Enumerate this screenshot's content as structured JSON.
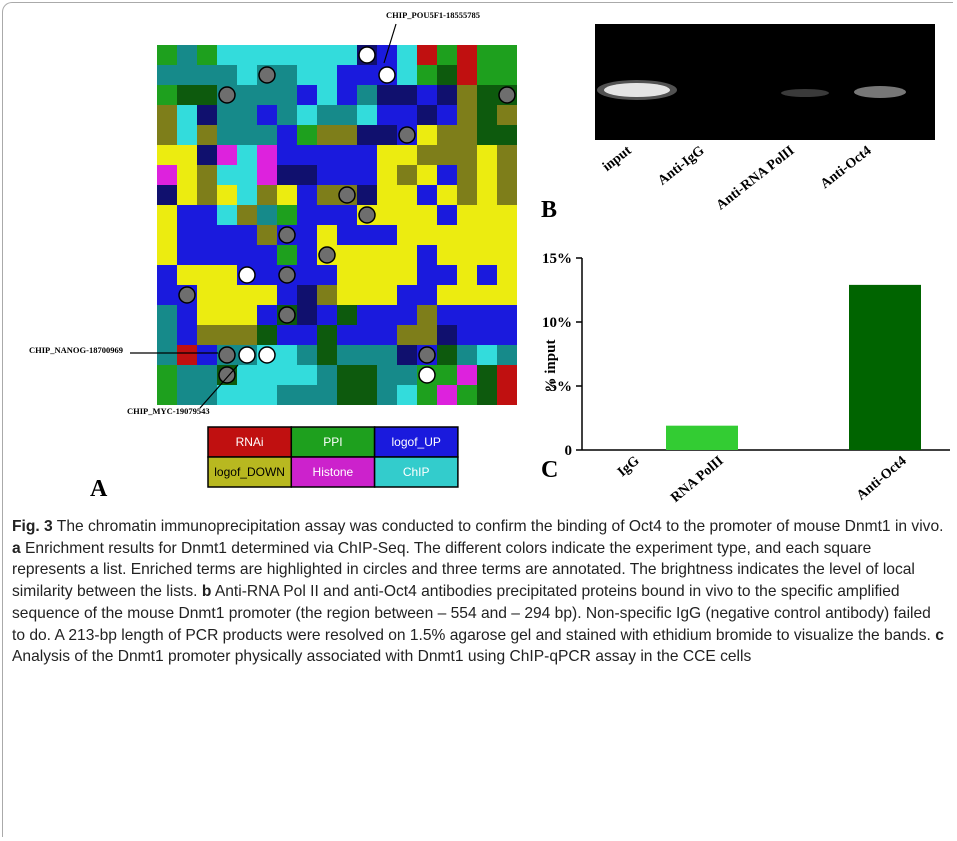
{
  "panel_a": {
    "letter": "A",
    "annotations": [
      "CHIP_POU5F1-18555785",
      "CHIP_NANOG-18700969",
      "CHIP_MYC-19079543"
    ],
    "legend": [
      "RNAi",
      "PPI",
      "logof_UP",
      "logof_DOWN",
      "Histone",
      "ChIP"
    ]
  },
  "panel_b": {
    "letter": "B",
    "lanes": [
      "input",
      "Anti-IgG",
      "Anti-RNA PolII",
      "Anti-Oct4"
    ]
  },
  "chart_data": {
    "type": "bar",
    "letter": "C",
    "y_label": "% input",
    "categories": [
      "IgG",
      "RNA PolII",
      "Anti-Oct4"
    ],
    "values": [
      0,
      1.9,
      12.9
    ],
    "colors": [
      "#33cc33",
      "#33cc33",
      "#006400"
    ],
    "ylim": [
      0,
      15
    ],
    "yticks": [
      0,
      {
        "value": 5,
        "label": "5%"
      },
      {
        "value": 10,
        "label": "10%"
      },
      {
        "value": 15,
        "label": "15%"
      }
    ],
    "grid": false
  },
  "caption": {
    "label": "Fig. 3",
    "text": "The chromatin immunoprecipitation assay was conducted to confirm the binding of Oct4 to the promoter of mouse Dnmt1 in vivo.",
    "parts": [
      {
        "letter": "a",
        "text": "Enrichment results for Dnmt1 determined via ChIP-Seq. The different colors indicate the experiment type, and each square represents a list. Enriched terms are highlighted in circles and three terms are annotated. The brightness indicates the level of local similarity between the lists."
      },
      {
        "letter": "b",
        "text": "Anti-RNA Pol II and anti-Oct4 antibodies precipitated proteins bound in vivo to the specific amplified sequence of the mouse Dnmt1 promoter (the region between – 554 and – 294 bp). Non-specific IgG (negative control antibody) failed to do. A 213-bp length of PCR products were resolved on 1.5% agarose gel and stained with ethidium bromide to visualize the bands."
      },
      {
        "letter": "c",
        "text": "Analysis of the Dnmt1 promoter physically associated with Dnmt1 using ChIP-qPCR assay in the CCE cells"
      }
    ]
  }
}
